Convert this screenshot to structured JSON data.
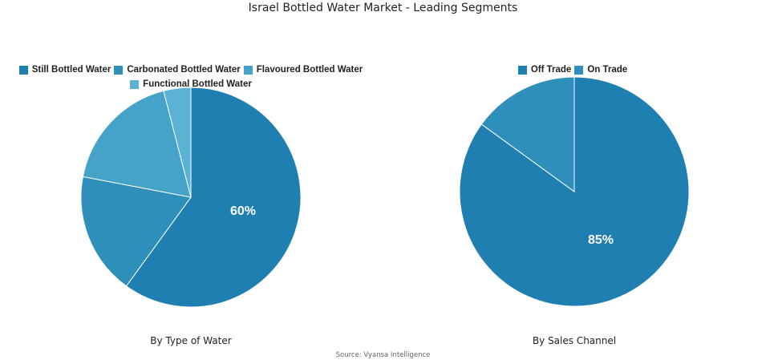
{
  "title": "Israel Bottled Water Market - Leading Segments",
  "source": "Source: Vyansa Intelligence",
  "chart_data": [
    {
      "type": "pie",
      "title": "By Type of Water",
      "categories": [
        "Still Bottled Water",
        "Carbonated Bottled Water",
        "Flavoured Bottled Water",
        "Functional Bottled Water"
      ],
      "values": [
        60,
        18,
        18,
        4
      ],
      "colors": [
        "#1f7fb0",
        "#2e8fbb",
        "#45a3c9",
        "#5cb2d4"
      ],
      "data_labels": [
        "60%",
        "",
        "",
        ""
      ],
      "legend_position": "top"
    },
    {
      "type": "pie",
      "title": "By Sales Channel",
      "categories": [
        "Off Trade",
        "On Trade"
      ],
      "values": [
        85,
        15
      ],
      "colors": [
        "#1f7fb0",
        "#2e8fbb"
      ],
      "data_labels": [
        "85%",
        ""
      ],
      "legend_position": "top"
    }
  ]
}
